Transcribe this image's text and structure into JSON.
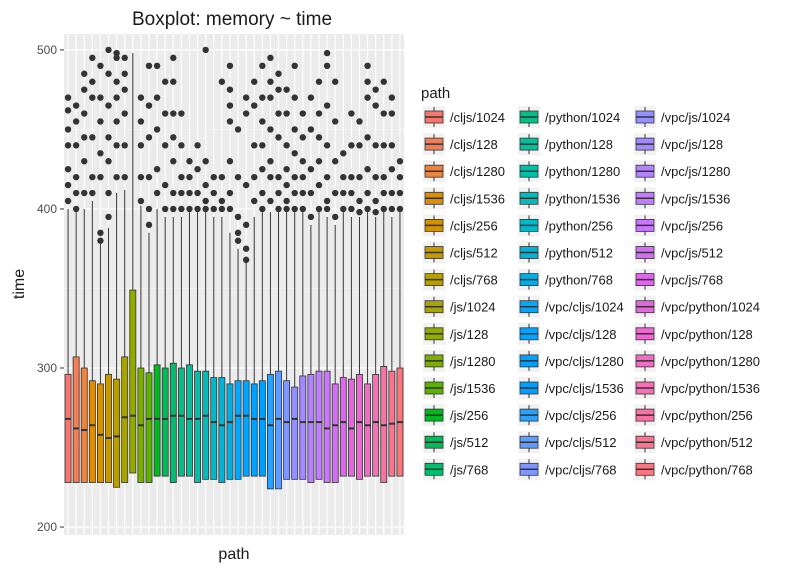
{
  "chart_data": {
    "type": "boxplot",
    "title": "Boxplot: memory ~ time",
    "xlabel": "path",
    "ylabel": "time",
    "ylim": [
      195,
      510
    ],
    "yticks": [
      200,
      300,
      400,
      500
    ],
    "grid": true,
    "legend": {
      "title": "path",
      "placement": "right"
    },
    "series": [
      {
        "name": "/cljs/1024",
        "color": "#F8766D",
        "lower": 228,
        "q1": 228,
        "median": 268,
        "q3": 296,
        "upper": 400,
        "outliers": [
          405,
          415,
          425,
          440,
          450,
          462,
          470
        ]
      },
      {
        "name": "/cljs/128",
        "color": "#F07E58",
        "lower": 228,
        "q1": 228,
        "median": 262,
        "q3": 307,
        "upper": 398,
        "outliers": [
          400,
          410,
          420,
          440,
          455,
          465
        ]
      },
      {
        "name": "/cljs/1280",
        "color": "#E88540",
        "lower": 228,
        "q1": 228,
        "median": 261,
        "q3": 300,
        "upper": 400,
        "outliers": [
          410,
          430,
          445,
          460,
          475,
          485
        ]
      },
      {
        "name": "/cljs/1536",
        "color": "#DE8C00",
        "lower": 228,
        "q1": 228,
        "median": 264,
        "q3": 292,
        "upper": 405,
        "outliers": [
          410,
          420,
          445,
          470,
          480,
          495
        ]
      },
      {
        "name": "/cljs/256",
        "color": "#D39200",
        "lower": 228,
        "q1": 228,
        "median": 258,
        "q3": 290,
        "upper": 378,
        "outliers": [
          380,
          385,
          420,
          435,
          455,
          470,
          490
        ]
      },
      {
        "name": "/cljs/512",
        "color": "#C49A00",
        "lower": 228,
        "q1": 228,
        "median": 256,
        "q3": 296,
        "upper": 388,
        "outliers": [
          395,
          410,
          430,
          445,
          465,
          485,
          500
        ]
      },
      {
        "name": "/cljs/768",
        "color": "#B79F00",
        "lower": 225,
        "q1": 225,
        "median": 257,
        "q3": 293,
        "upper": 410,
        "outliers": [
          420,
          440,
          455,
          470,
          480,
          495,
          498
        ]
      },
      {
        "name": "/js/1024",
        "color": "#A8A400",
        "lower": 228,
        "q1": 228,
        "median": 269,
        "q3": 307,
        "upper": 412,
        "outliers": [
          420,
          440,
          460,
          475,
          485,
          495
        ]
      },
      {
        "name": "/js/128",
        "color": "#93AA00",
        "lower": 234,
        "q1": 234,
        "median": 270,
        "q3": 349,
        "upper": 498,
        "outliers": []
      },
      {
        "name": "/js/1280",
        "color": "#7CAE00",
        "lower": 228,
        "q1": 228,
        "median": 264,
        "q3": 300,
        "upper": 402,
        "outliers": [
          405,
          420,
          440,
          455,
          470
        ]
      },
      {
        "name": "/js/1536",
        "color": "#5BB300",
        "lower": 228,
        "q1": 228,
        "median": 268,
        "q3": 297,
        "upper": 385,
        "outliers": [
          390,
          400,
          420,
          445,
          465,
          490
        ]
      },
      {
        "name": "/js/256",
        "color": "#00B81F",
        "lower": 232,
        "q1": 232,
        "median": 268,
        "q3": 302,
        "upper": 400,
        "outliers": [
          410,
          425,
          450,
          470,
          490
        ]
      },
      {
        "name": "/js/512",
        "color": "#00BC56",
        "lower": 232,
        "q1": 232,
        "median": 268,
        "q3": 300,
        "upper": 395,
        "outliers": [
          400,
          415,
          440,
          460,
          480
        ]
      },
      {
        "name": "/js/768",
        "color": "#00BE70",
        "lower": 228,
        "q1": 228,
        "median": 270,
        "q3": 303,
        "upper": 395,
        "outliers": [
          400,
          410,
          430,
          445,
          460,
          480,
          495
        ]
      },
      {
        "name": "/python/1024",
        "color": "#00C087",
        "lower": 232,
        "q1": 232,
        "median": 270,
        "q3": 300,
        "upper": 395,
        "outliers": [
          400,
          410,
          420,
          440,
          460
        ]
      },
      {
        "name": "/python/128",
        "color": "#00C19A",
        "lower": 232,
        "q1": 232,
        "median": 268,
        "q3": 302,
        "upper": 398,
        "outliers": [
          400,
          410,
          420,
          430
        ]
      },
      {
        "name": "/python/1280",
        "color": "#00C0AB",
        "lower": 228,
        "q1": 228,
        "median": 268,
        "q3": 298,
        "upper": 398,
        "outliers": [
          400,
          410,
          425,
          440
        ]
      },
      {
        "name": "/python/1536",
        "color": "#00BDBC",
        "lower": 230,
        "q1": 230,
        "median": 270,
        "q3": 298,
        "upper": 398,
        "outliers": [
          400,
          405,
          415,
          430,
          500
        ]
      },
      {
        "name": "/python/256",
        "color": "#00BACB",
        "lower": 230,
        "q1": 230,
        "median": 266,
        "q3": 294,
        "upper": 395,
        "outliers": [
          400,
          410,
          420
        ]
      },
      {
        "name": "/python/512",
        "color": "#00B4D8",
        "lower": 228,
        "q1": 228,
        "median": 264,
        "q3": 294,
        "upper": 395,
        "outliers": [
          400,
          405,
          420,
          480
        ]
      },
      {
        "name": "/python/768",
        "color": "#00AEE3",
        "lower": 230,
        "q1": 230,
        "median": 266,
        "q3": 290,
        "upper": 385,
        "outliers": [
          400,
          410,
          430,
          455,
          465,
          475,
          490
        ]
      },
      {
        "name": "/vpc/cljs/1024",
        "color": "#00A8FF",
        "lower": 230,
        "q1": 230,
        "median": 270,
        "q3": 292,
        "upper": 375,
        "outliers": [
          380,
          385,
          395,
          420,
          450
        ]
      },
      {
        "name": "/vpc/cljs/128",
        "color": "#00A5FF",
        "lower": 232,
        "q1": 232,
        "median": 270,
        "q3": 292,
        "upper": 370,
        "outliers": [
          368,
          375,
          390,
          415,
          460,
          470
        ]
      },
      {
        "name": "/vpc/cljs/1280",
        "color": "#00A1FF",
        "lower": 232,
        "q1": 232,
        "median": 268,
        "q3": 290,
        "upper": 395,
        "outliers": [
          405,
          420,
          440,
          465,
          480
        ]
      },
      {
        "name": "/vpc/cljs/1536",
        "color": "#009EFF",
        "lower": 232,
        "q1": 232,
        "median": 268,
        "q3": 292,
        "upper": 398,
        "outliers": [
          400,
          410,
          425,
          440,
          455,
          470,
          490
        ]
      },
      {
        "name": "/vpc/cljs/256",
        "color": "#2AA1FF",
        "lower": 224,
        "q1": 224,
        "median": 264,
        "q3": 296,
        "upper": 398,
        "outliers": [
          405,
          420,
          430,
          450,
          470,
          480,
          495
        ]
      },
      {
        "name": "/vpc/cljs/512",
        "color": "#5E9CFF",
        "lower": 224,
        "q1": 224,
        "median": 268,
        "q3": 298,
        "upper": 398,
        "outliers": [
          400,
          410,
          420,
          445,
          460,
          475,
          485
        ]
      },
      {
        "name": "/vpc/cljs/768",
        "color": "#7F96FF",
        "lower": 230,
        "q1": 230,
        "median": 266,
        "q3": 292,
        "upper": 398,
        "outliers": [
          400,
          405,
          415,
          425,
          440,
          460,
          475
        ]
      },
      {
        "name": "/vpc/js/1024",
        "color": "#9590FF",
        "lower": 230,
        "q1": 230,
        "median": 268,
        "q3": 288,
        "upper": 398,
        "outliers": [
          400,
          410,
          420,
          435,
          450,
          470,
          490
        ]
      },
      {
        "name": "/vpc/js/128",
        "color": "#A58AFF",
        "lower": 230,
        "q1": 230,
        "median": 266,
        "q3": 295,
        "upper": 398,
        "outliers": [
          400,
          410,
          420,
          430,
          445,
          460
        ]
      },
      {
        "name": "/vpc/js/1280",
        "color": "#B383FF",
        "lower": 228,
        "q1": 228,
        "median": 266,
        "q3": 296,
        "upper": 390,
        "outliers": [
          395,
          410,
          425,
          450,
          470
        ]
      },
      {
        "name": "/vpc/js/1536",
        "color": "#C17CFF",
        "lower": 230,
        "q1": 230,
        "median": 266,
        "q3": 298,
        "upper": 398,
        "outliers": [
          400,
          415,
          430,
          445,
          460,
          480
        ]
      },
      {
        "name": "/vpc/js/256",
        "color": "#CC75FF",
        "lower": 228,
        "q1": 228,
        "median": 262,
        "q3": 298,
        "upper": 395,
        "outliers": [
          400,
          405,
          420,
          440,
          465,
          490,
          498
        ]
      },
      {
        "name": "/vpc/js/512",
        "color": "#D56DF6",
        "lower": 228,
        "q1": 228,
        "median": 264,
        "q3": 290,
        "upper": 390,
        "outliers": [
          395,
          410,
          430,
          455,
          480
        ]
      },
      {
        "name": "/vpc/js/768",
        "color": "#DE66EC",
        "lower": 232,
        "q1": 232,
        "median": 266,
        "q3": 294,
        "upper": 398,
        "outliers": [
          400,
          410,
          420,
          435
        ]
      },
      {
        "name": "/vpc/python/1024",
        "color": "#E765E0",
        "lower": 232,
        "q1": 232,
        "median": 262,
        "q3": 293,
        "upper": 395,
        "outliers": [
          400,
          410,
          420,
          440,
          460
        ]
      },
      {
        "name": "/vpc/python/128",
        "color": "#EE67D4",
        "lower": 230,
        "q1": 230,
        "median": 266,
        "q3": 296,
        "upper": 395,
        "outliers": [
          398,
          405,
          420,
          440,
          455
        ]
      },
      {
        "name": "/vpc/python/1280",
        "color": "#F36BC5",
        "lower": 232,
        "q1": 232,
        "median": 264,
        "q3": 290,
        "upper": 398,
        "outliers": [
          400,
          410,
          425,
          445,
          470,
          480,
          490
        ]
      },
      {
        "name": "/vpc/python/1536",
        "color": "#F76FB5",
        "lower": 232,
        "q1": 232,
        "median": 266,
        "q3": 296,
        "upper": 395,
        "outliers": [
          398,
          405,
          420,
          440,
          465,
          475
        ]
      },
      {
        "name": "/vpc/python/256",
        "color": "#F972A4",
        "lower": 228,
        "q1": 228,
        "median": 264,
        "q3": 301,
        "upper": 398,
        "outliers": [
          400,
          410,
          420,
          440,
          460,
          480
        ]
      },
      {
        "name": "/vpc/python/512",
        "color": "#FA7492",
        "lower": 232,
        "q1": 232,
        "median": 265,
        "q3": 298,
        "upper": 395,
        "outliers": [
          400,
          410,
          425,
          440,
          460,
          470
        ]
      },
      {
        "name": "/vpc/python/768",
        "color": "#F9767F",
        "lower": 232,
        "q1": 232,
        "median": 266,
        "q3": 300,
        "upper": 398,
        "outliers": [
          400,
          410,
          420,
          430
        ]
      }
    ]
  }
}
